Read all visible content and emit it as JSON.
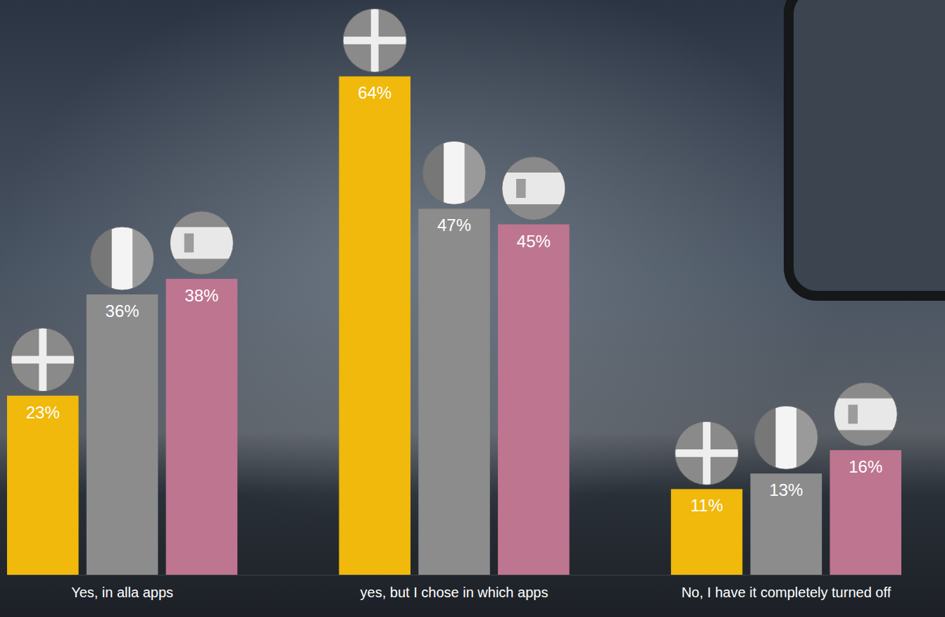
{
  "chart_data": {
    "type": "bar",
    "categories": [
      "Yes, in alla apps",
      "yes, but I chose in which apps",
      "No, I have it completely turned off"
    ],
    "series": [
      {
        "color": "#f0b90b",
        "values": [
          23,
          64,
          11
        ],
        "value_labels": [
          "23%",
          "64%",
          "11%"
        ]
      },
      {
        "color": "#8c8c8c",
        "values": [
          36,
          47,
          13
        ],
        "value_labels": [
          "36%",
          "47%",
          "13%"
        ]
      },
      {
        "color": "#be7590",
        "values": [
          38,
          45,
          16
        ],
        "value_labels": [
          "38%",
          "45%",
          "16%"
        ]
      }
    ],
    "ylim": [
      0,
      72
    ],
    "tick_labels": "x",
    "data_labels": true,
    "grid": false
  }
}
